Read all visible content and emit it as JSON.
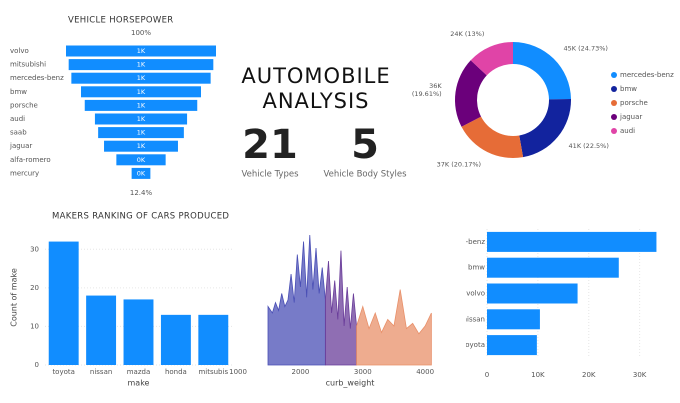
{
  "header": {
    "title_lines": [
      "AUTOMOBILE",
      "ANALYSIS"
    ]
  },
  "kpis": [
    {
      "value": 21,
      "label": "Vehicle Types"
    },
    {
      "value": 5,
      "label": "Vehicle Body Styles"
    }
  ],
  "chart_data": [
    {
      "type": "funnel",
      "title": "VEHICLE HORSEPOWER",
      "categories": [
        "volvo",
        "mitsubishi",
        "mercedes-benz",
        "bmw",
        "porsche",
        "audi",
        "saab",
        "jaguar",
        "alfa-romero",
        "mercury"
      ],
      "values": [
        1400,
        1350,
        1300,
        1120,
        1050,
        860,
        800,
        690,
        460,
        175
      ],
      "value_labels": [
        "1K",
        "1K",
        "1K",
        "1K",
        "1K",
        "1K",
        "1K",
        "1K",
        "0K",
        "0K"
      ],
      "annotations": {
        "top": "100%",
        "bottom": "12.4%"
      },
      "color": "#118dff"
    },
    {
      "type": "donut",
      "categories": [
        "mercedes-benz",
        "bmw",
        "porsche",
        "jaguar",
        "audi"
      ],
      "values": [
        45000,
        40940,
        36700,
        35690,
        23660
      ],
      "value_labels": [
        "45K (24.73%)",
        "41K (22.5%)",
        "37K (20.17%)",
        "36K (19.61%)",
        "24K (13%)"
      ],
      "colors": [
        "#118dff",
        "#12239e",
        "#e66c37",
        "#6b007b",
        "#e044a7"
      ],
      "legend": "right"
    },
    {
      "type": "bar",
      "title": "MAKERS RANKING OF CARS PRODUCED",
      "x_label": "make",
      "y_label": "Count of make",
      "categories": [
        "toyota",
        "nissan",
        "mazda",
        "honda",
        "mitsubis"
      ],
      "values": [
        32,
        18,
        17,
        13,
        13
      ],
      "color": "#118dff",
      "ylim": [
        0,
        35
      ],
      "yticks": [
        0,
        10,
        20,
        30
      ],
      "grid": true
    },
    {
      "type": "area",
      "x_label": "curb_weight",
      "xlim": [
        1480,
        4110
      ],
      "xticks": [
        1000,
        2000,
        3000,
        4000
      ],
      "ylim": [
        0,
        100
      ],
      "series": [
        {
          "color": "#4a4fb5",
          "x": [
            1480,
            1550,
            1600,
            1650,
            1700,
            1750,
            1800,
            1850,
            1900,
            1950,
            2000,
            2050,
            2100,
            2150,
            2200,
            2250,
            2300,
            2350,
            2400
          ],
          "values": [
            45,
            40,
            48,
            42,
            55,
            45,
            50,
            70,
            48,
            85,
            60,
            95,
            52,
            100,
            58,
            90,
            55,
            75,
            50
          ]
        },
        {
          "color": "#6a3d9a",
          "x": [
            2400,
            2450,
            2500,
            2550,
            2600,
            2650,
            2700,
            2750,
            2800,
            2850,
            2900
          ],
          "values": [
            50,
            80,
            40,
            65,
            35,
            88,
            30,
            60,
            28,
            55,
            30
          ]
        },
        {
          "color": "#e8906a",
          "x": [
            2900,
            3000,
            3100,
            3200,
            3300,
            3400,
            3500,
            3600,
            3700,
            3800,
            3900,
            4000,
            4100
          ],
          "values": [
            30,
            45,
            28,
            40,
            25,
            35,
            30,
            58,
            28,
            32,
            24,
            30,
            40
          ]
        }
      ]
    },
    {
      "type": "hbar",
      "categories": [
        "mercedes-benz",
        "bmw",
        "volvo",
        "nissan",
        "toyota"
      ],
      "values": [
        33300,
        25900,
        17800,
        10400,
        9800
      ],
      "color": "#118dff",
      "xlim": [
        0,
        34000
      ],
      "xticks": [
        0,
        {
          "value": 10000,
          "label": "10K"
        },
        {
          "value": 20000,
          "label": "20K"
        },
        {
          "value": 30000,
          "label": "30K"
        }
      ],
      "grid": true
    }
  ]
}
